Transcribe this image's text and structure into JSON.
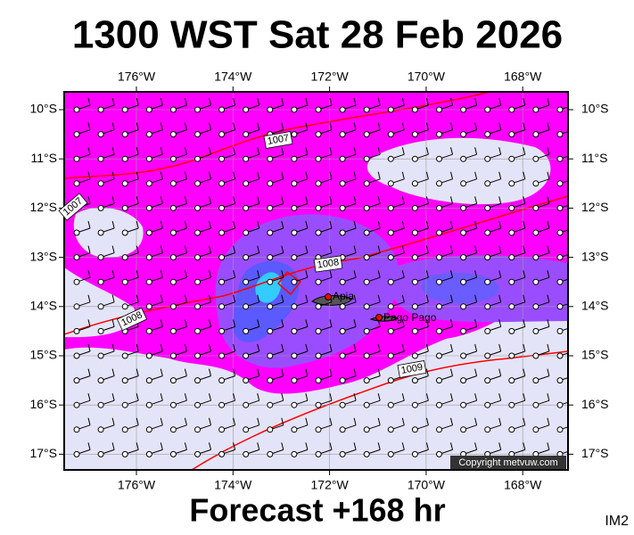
{
  "header": {
    "title": "1300 WST Sat 28 Feb 2026"
  },
  "map": {
    "lon_labels": [
      "176°W",
      "174°W",
      "172°W",
      "170°W",
      "168°W"
    ],
    "lat_labels": [
      "10°S",
      "11°S",
      "12°S",
      "13°S",
      "14°S",
      "15°S",
      "16°S",
      "17°S"
    ],
    "isobars": [
      {
        "label": "1007"
      },
      {
        "label": "1007"
      },
      {
        "label": "1008"
      },
      {
        "label": "1008"
      },
      {
        "label": "1009"
      }
    ],
    "places": [
      {
        "name": "Apia"
      },
      {
        "name": "Pago Pago"
      }
    ],
    "copyright": "Copyright metvuw.com"
  },
  "footer": {
    "forecast": "Forecast +168 hr",
    "image_id": "IM2"
  }
}
